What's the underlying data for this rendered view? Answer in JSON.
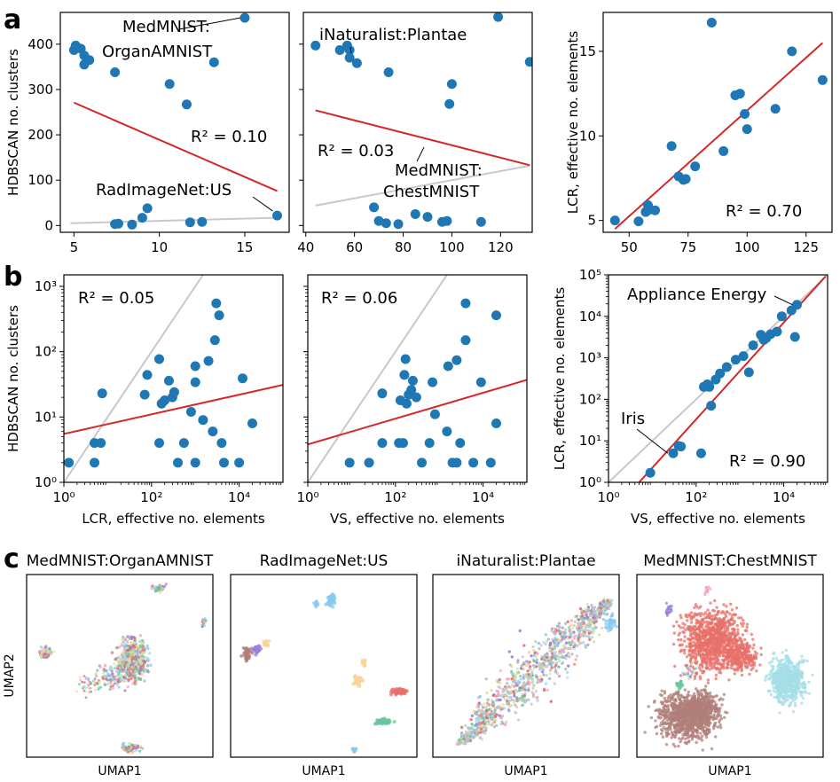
{
  "panel_letters": [
    "a",
    "b",
    "c"
  ],
  "colors": {
    "point": "#1f77b4",
    "fit": "#d62728",
    "identity": "#c8c8c8"
  },
  "chart_data": [
    {
      "id": "a1",
      "type": "scatter",
      "xscale": "linear",
      "yscale": "linear",
      "xlim": [
        4.2,
        17.6
      ],
      "ylim": [
        -15,
        470
      ],
      "xticks": [
        5,
        10,
        15
      ],
      "xticklabels": [
        "5",
        "10",
        "15"
      ],
      "yticks": [
        0,
        100,
        200,
        300,
        400
      ],
      "yticklabels": [
        "0",
        "100",
        "200",
        "300",
        "400"
      ],
      "xlabel": "",
      "ylabel": "HDBSCAN no. clusters",
      "points": [
        [
          5.0,
          387
        ],
        [
          5.1,
          397
        ],
        [
          5.4,
          390
        ],
        [
          5.6,
          375
        ],
        [
          5.6,
          355
        ],
        [
          5.9,
          365
        ],
        [
          7.4,
          338
        ],
        [
          10.6,
          312
        ],
        [
          11.6,
          267
        ],
        [
          13.2,
          360
        ],
        [
          15.0,
          458
        ],
        [
          7.4,
          3
        ],
        [
          7.6,
          4
        ],
        [
          8.4,
          2
        ],
        [
          9.0,
          17
        ],
        [
          9.3,
          38
        ],
        [
          11.8,
          7
        ],
        [
          12.5,
          8
        ],
        [
          16.9,
          22
        ]
      ],
      "fit": {
        "x": [
          5,
          16.9
        ],
        "y": [
          271,
          76
        ]
      },
      "identity": {
        "x": [
          4.8,
          16.9
        ],
        "y": [
          5,
          17
        ]
      },
      "r2_text": "R² = 0.10",
      "r2_pos": "middle-right",
      "annotations": [
        {
          "text": "MedMNIST:",
          "target": [
            15.0,
            458
          ]
        },
        {
          "text": "OrganAMNIST",
          "target": null
        },
        {
          "text": "RadImageNet:US",
          "target": [
            16.9,
            22
          ]
        }
      ]
    },
    {
      "id": "a2",
      "type": "scatter",
      "xscale": "linear",
      "yscale": "linear",
      "xlim": [
        39,
        133
      ],
      "ylim": [
        -15,
        470
      ],
      "xticks": [
        40,
        60,
        80,
        100,
        120
      ],
      "xticklabels": [
        "40",
        "60",
        "80",
        "100",
        "120"
      ],
      "yticks": [
        0,
        100,
        200,
        300,
        400
      ],
      "yticklabels": [],
      "xlabel": "",
      "ylabel": "",
      "points": [
        [
          44,
          397
        ],
        [
          54,
          387
        ],
        [
          57,
          397
        ],
        [
          58,
          387
        ],
        [
          58,
          370
        ],
        [
          61,
          358
        ],
        [
          74,
          338
        ],
        [
          99,
          268
        ],
        [
          100,
          312
        ],
        [
          119,
          460
        ],
        [
          132,
          361
        ],
        [
          68,
          40
        ],
        [
          70,
          10
        ],
        [
          73,
          5
        ],
        [
          78,
          3
        ],
        [
          85,
          25
        ],
        [
          90,
          19
        ],
        [
          96,
          8
        ],
        [
          98,
          10
        ],
        [
          112,
          8
        ]
      ],
      "fit": {
        "x": [
          44,
          132
        ],
        "y": [
          254,
          133
        ]
      },
      "identity": {
        "x": [
          44,
          132
        ],
        "y": [
          44,
          132
        ]
      },
      "r2_text": "R² = 0.03",
      "r2_pos": "middle-left",
      "annotations": [
        {
          "text": "iNaturalist:Plantae",
          "target": [
            58,
            387
          ]
        },
        {
          "text": "MedMNIST:",
          "target": [
            98,
            200
          ]
        },
        {
          "text": "ChestMNIST",
          "target": null
        }
      ]
    },
    {
      "id": "a3",
      "type": "scatter",
      "xscale": "linear",
      "yscale": "linear",
      "xlim": [
        39,
        136
      ],
      "ylim": [
        4.3,
        17.3
      ],
      "xticks": [
        50,
        75,
        100,
        125
      ],
      "xticklabels": [
        "50",
        "75",
        "100",
        "125"
      ],
      "yticks": [
        5,
        10,
        15
      ],
      "yticklabels": [
        "5",
        "10",
        "15"
      ],
      "xlabel": "",
      "ylabel": "LCR, effective no. elements",
      "points": [
        [
          44,
          5.0
        ],
        [
          54,
          4.95
        ],
        [
          57,
          5.5
        ],
        [
          58,
          5.9
        ],
        [
          58,
          5.6
        ],
        [
          61,
          5.6
        ],
        [
          68,
          9.4
        ],
        [
          71,
          7.6
        ],
        [
          73,
          7.4
        ],
        [
          74,
          7.45
        ],
        [
          78,
          8.2
        ],
        [
          85,
          16.7
        ],
        [
          90,
          9.1
        ],
        [
          95,
          12.4
        ],
        [
          97,
          12.5
        ],
        [
          99,
          11.3
        ],
        [
          100,
          10.4
        ],
        [
          112,
          11.6
        ],
        [
          119,
          15.0
        ],
        [
          132,
          13.3
        ]
      ],
      "fit": {
        "x": [
          44,
          132
        ],
        "y": [
          4.5,
          15.5
        ]
      },
      "r2_text": "R² = 0.70",
      "r2_pos": "bottom-right",
      "annotations": []
    },
    {
      "id": "b1",
      "type": "scatter",
      "xscale": "log",
      "yscale": "log",
      "xlim": [
        1,
        100000
      ],
      "ylim": [
        1,
        1500
      ],
      "xticks": [
        1,
        100,
        10000
      ],
      "xticklabels": [
        "10⁰",
        "10²",
        "10⁴"
      ],
      "yticks": [
        1,
        10,
        100,
        1000
      ],
      "yticklabels": [
        "10⁰",
        "10¹",
        "10²",
        "10³"
      ],
      "xlabel": "LCR, effective no. elements",
      "ylabel": "HDBSCAN no. clusters",
      "points": [
        [
          1.3,
          2
        ],
        [
          5,
          2
        ],
        [
          5,
          4
        ],
        [
          7,
          4
        ],
        [
          7.5,
          23
        ],
        [
          70,
          22
        ],
        [
          80,
          44
        ],
        [
          150,
          77
        ],
        [
          150,
          4
        ],
        [
          170,
          16
        ],
        [
          200,
          18
        ],
        [
          250,
          36
        ],
        [
          300,
          20
        ],
        [
          330,
          24
        ],
        [
          400,
          2
        ],
        [
          550,
          4
        ],
        [
          800,
          12
        ],
        [
          1000,
          2
        ],
        [
          1000,
          34
        ],
        [
          1000,
          60
        ],
        [
          1500,
          9
        ],
        [
          2000,
          72
        ],
        [
          2500,
          6
        ],
        [
          2800,
          150
        ],
        [
          3000,
          550
        ],
        [
          3500,
          360
        ],
        [
          4000,
          4
        ],
        [
          4500,
          2
        ],
        [
          10000,
          2
        ],
        [
          12000,
          39
        ],
        [
          20000,
          8
        ]
      ],
      "fit": {
        "x": [
          1,
          100000
        ],
        "y": [
          5.5,
          31
        ]
      },
      "identity": {
        "x": [
          1,
          1500
        ],
        "y": [
          1,
          1500
        ]
      },
      "r2_text": "R² = 0.05",
      "r2_pos": "top-left",
      "annotations": []
    },
    {
      "id": "b2",
      "type": "scatter",
      "xscale": "log",
      "yscale": "log",
      "xlim": [
        1,
        100000
      ],
      "ylim": [
        1,
        1500
      ],
      "xticks": [
        1,
        100,
        10000
      ],
      "xticklabels": [
        "10⁰",
        "10²",
        "10⁴"
      ],
      "yticks": [
        1,
        10,
        100,
        1000
      ],
      "yticklabels": [],
      "xlabel": "VS, effective no. elements",
      "ylabel": "",
      "points": [
        [
          9,
          2
        ],
        [
          25,
          2
        ],
        [
          50,
          23
        ],
        [
          50,
          4
        ],
        [
          120,
          4
        ],
        [
          130,
          18
        ],
        [
          150,
          4
        ],
        [
          160,
          44
        ],
        [
          170,
          77
        ],
        [
          180,
          16
        ],
        [
          200,
          22
        ],
        [
          230,
          26
        ],
        [
          250,
          36
        ],
        [
          300,
          20
        ],
        [
          400,
          2
        ],
        [
          600,
          4
        ],
        [
          700,
          34
        ],
        [
          800,
          11
        ],
        [
          1500,
          6
        ],
        [
          1600,
          60
        ],
        [
          2000,
          2
        ],
        [
          2500,
          74
        ],
        [
          2500,
          2
        ],
        [
          3000,
          4
        ],
        [
          4000,
          550
        ],
        [
          4000,
          150
        ],
        [
          6000,
          2
        ],
        [
          9000,
          34
        ],
        [
          15000,
          2
        ],
        [
          20000,
          8
        ],
        [
          20000,
          360
        ]
      ],
      "fit": {
        "x": [
          1,
          100000
        ],
        "y": [
          3.8,
          37
        ]
      },
      "identity": {
        "x": [
          1,
          1500
        ],
        "y": [
          1,
          1500
        ]
      },
      "r2_text": "R² = 0.06",
      "r2_pos": "top-left",
      "annotations": []
    },
    {
      "id": "b3",
      "type": "scatter",
      "xscale": "log",
      "yscale": "log",
      "xlim": [
        1,
        100000
      ],
      "ylim": [
        1,
        100000
      ],
      "xticks": [
        1,
        100,
        10000
      ],
      "xticklabels": [
        "10⁰",
        "10²",
        "10⁴"
      ],
      "yticks": [
        1,
        10,
        100,
        1000,
        10000,
        100000
      ],
      "yticklabels": [
        "10⁰",
        "10¹",
        "10²",
        "10³",
        "10⁴",
        "10⁵"
      ],
      "xlabel": "VS, effective no. elements",
      "ylabel": "LCR, effective no. elements",
      "points": [
        [
          9,
          1.7
        ],
        [
          30,
          5
        ],
        [
          40,
          7.5
        ],
        [
          45,
          7.3
        ],
        [
          130,
          5
        ],
        [
          150,
          200
        ],
        [
          180,
          230
        ],
        [
          200,
          200
        ],
        [
          220,
          70
        ],
        [
          280,
          300
        ],
        [
          350,
          420
        ],
        [
          500,
          600
        ],
        [
          800,
          900
        ],
        [
          1200,
          1100
        ],
        [
          1600,
          450
        ],
        [
          2000,
          2000
        ],
        [
          3000,
          3600
        ],
        [
          3500,
          2700
        ],
        [
          4000,
          3000
        ],
        [
          5000,
          3700
        ],
        [
          7000,
          4300
        ],
        [
          9000,
          10000
        ],
        [
          15000,
          14000
        ],
        [
          20000,
          19000
        ],
        [
          18000,
          3200
        ]
      ],
      "fit": {
        "x": [
          5,
          90000
        ],
        "y": [
          1,
          92000
        ]
      },
      "identity": {
        "x": [
          1,
          100000
        ],
        "y": [
          1,
          100000
        ]
      },
      "r2_text": "R² = 0.90",
      "r2_pos": "bottom-right",
      "annotations": [
        {
          "text": "Appliance Energy",
          "target": [
            20000,
            19000
          ]
        },
        {
          "text": "Iris",
          "target": [
            30,
            5
          ]
        }
      ]
    }
  ],
  "umap": {
    "xlabel": "UMAP1",
    "ylabel": "UMAP2",
    "palette": [
      "#e8706a",
      "#a4dde6",
      "#b07f7a",
      "#f7d49a",
      "#87c9ef",
      "#67c69e",
      "#9b7fdb",
      "#f2a6c2",
      "#c9e7a8",
      "#bdbdbd"
    ],
    "panels": [
      {
        "title": "MedMNIST:OrganAMNIST"
      },
      {
        "title": "RadImageNet:US"
      },
      {
        "title": "iNaturalist:Plantae"
      },
      {
        "title": "MedMNIST:ChestMNIST"
      }
    ]
  }
}
